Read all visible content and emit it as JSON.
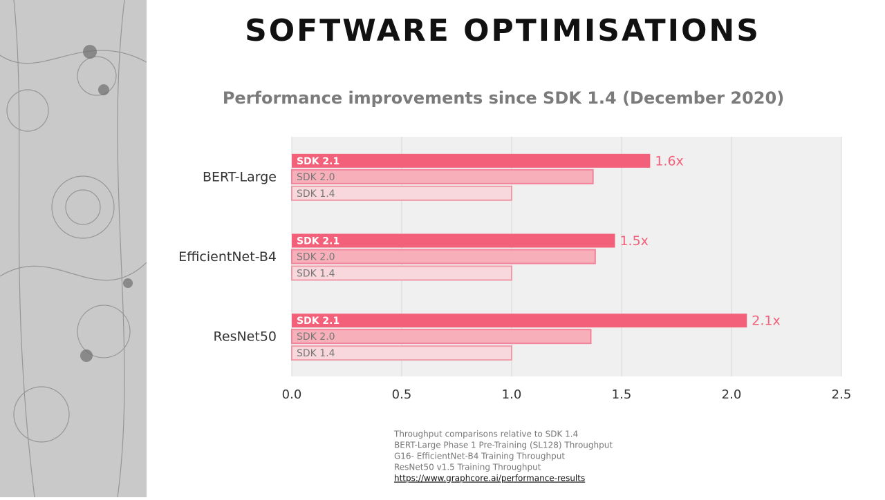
{
  "header": {
    "title": "SOFTWARE OPTIMISATIONS"
  },
  "chart_data": {
    "type": "bar",
    "orientation": "horizontal",
    "title": "Performance improvements since SDK 1.4 (December 2020)",
    "categories": [
      "BERT-Large",
      "EfficientNet-B4",
      "ResNet50"
    ],
    "series": [
      {
        "name": "SDK 2.1",
        "color": "#f2607a",
        "values": [
          1.63,
          1.47,
          2.07
        ],
        "value_labels": [
          "1.6x",
          "1.5x",
          "2.1x"
        ]
      },
      {
        "name": "SDK 2.0",
        "color": "#f7b0ba",
        "values": [
          1.37,
          1.38,
          1.36
        ]
      },
      {
        "name": "SDK 1.4",
        "color": "#f8d8dd",
        "values": [
          1,
          1,
          1
        ]
      }
    ],
    "xlim": [
      0,
      2.5
    ],
    "xticks": [
      {
        "value": 0,
        "label": "0.0"
      },
      {
        "value": 0.5,
        "label": "0.5"
      },
      {
        "value": 1,
        "label": "1.0"
      },
      {
        "value": 1.5,
        "label": "1.5"
      },
      {
        "value": 2,
        "label": "2.0"
      },
      {
        "value": 2.5,
        "label": "2.5"
      }
    ],
    "grid": true
  },
  "footnotes": {
    "lines": [
      "Throughput comparisons relative to SDK 1.4",
      "BERT-Large  Phase 1 Pre-Training  (SL128) Throughput",
      "G16- EfficientNet-B4  Training  Throughput",
      "ResNet50  v1.5 Training Throughput"
    ],
    "link": "https://www.graphcore.ai/performance-results"
  }
}
